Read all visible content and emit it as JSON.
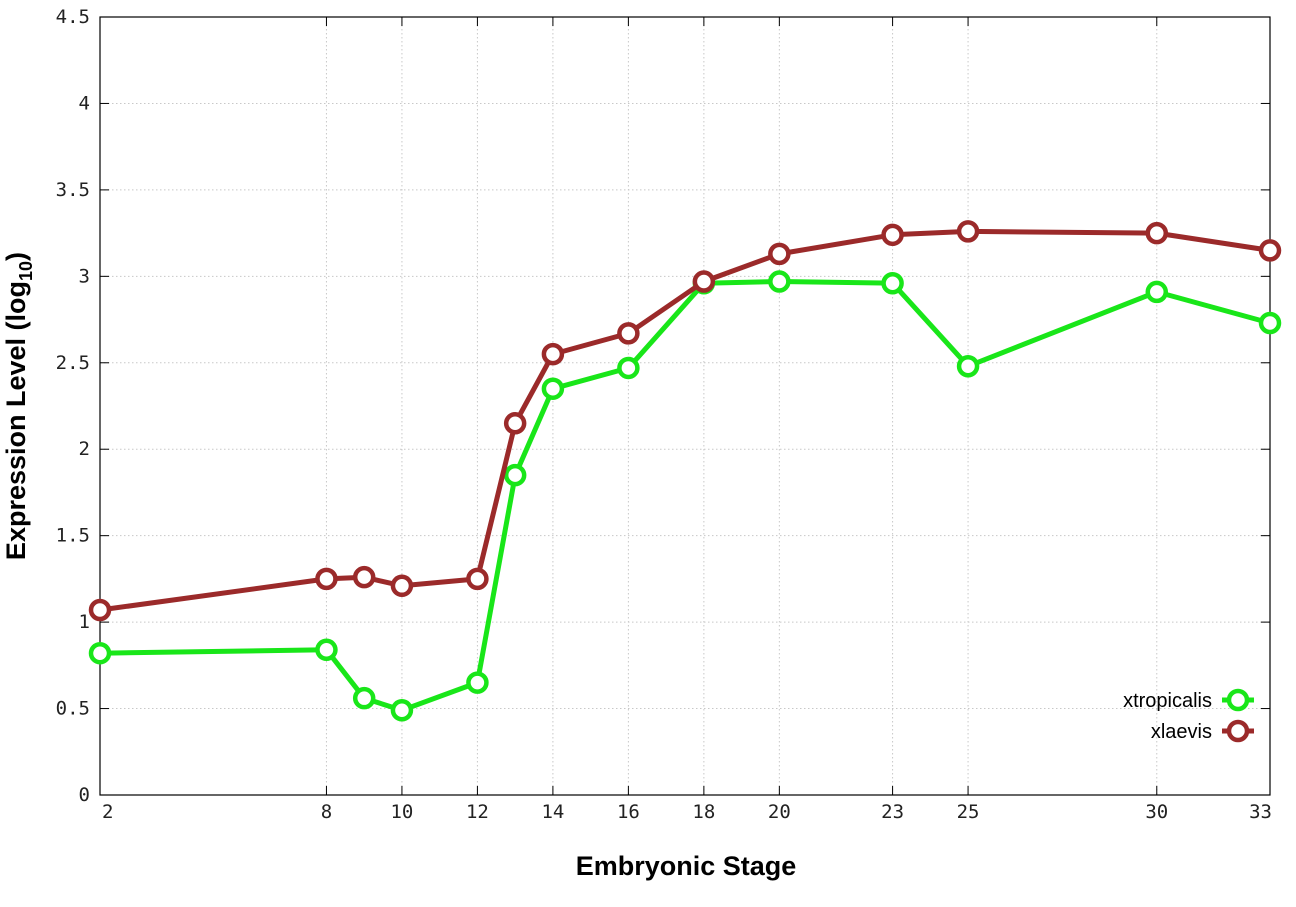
{
  "chart_data": {
    "type": "line",
    "xlabel": "Embryonic Stage",
    "ylabel_main": "Expression Level (log",
    "ylabel_sub": "10",
    "ylabel_close": ")",
    "xlim": [
      2,
      33
    ],
    "ylim": [
      0,
      4.5
    ],
    "x_ticks": [
      2,
      8,
      10,
      12,
      14,
      16,
      18,
      20,
      23,
      25,
      30,
      33
    ],
    "y_ticks": [
      0,
      0.5,
      1,
      1.5,
      2,
      2.5,
      3,
      3.5,
      4,
      4.5
    ],
    "y_tick_labels": [
      "0",
      "0.5",
      "1",
      "1.5",
      "2",
      "2.5",
      "3",
      "3.5",
      "4",
      "4.5"
    ],
    "grid": true,
    "legend_position": "bottom-right",
    "series": [
      {
        "name": "xtropicalis",
        "color": "#19e619",
        "x": [
          2,
          8,
          9,
          10,
          12,
          13,
          14,
          16,
          18,
          20,
          23,
          25,
          30,
          33
        ],
        "y": [
          0.82,
          0.84,
          0.56,
          0.49,
          0.65,
          1.85,
          2.35,
          2.47,
          2.96,
          2.97,
          2.96,
          2.48,
          2.91,
          2.73
        ]
      },
      {
        "name": "xlaevis",
        "color": "#9b2a2a",
        "x": [
          2,
          8,
          9,
          10,
          12,
          13,
          14,
          16,
          18,
          20,
          23,
          25,
          30,
          33
        ],
        "y": [
          1.07,
          1.25,
          1.26,
          1.21,
          1.25,
          2.15,
          2.55,
          2.67,
          2.97,
          3.13,
          3.24,
          3.26,
          3.25,
          3.15
        ]
      }
    ]
  }
}
